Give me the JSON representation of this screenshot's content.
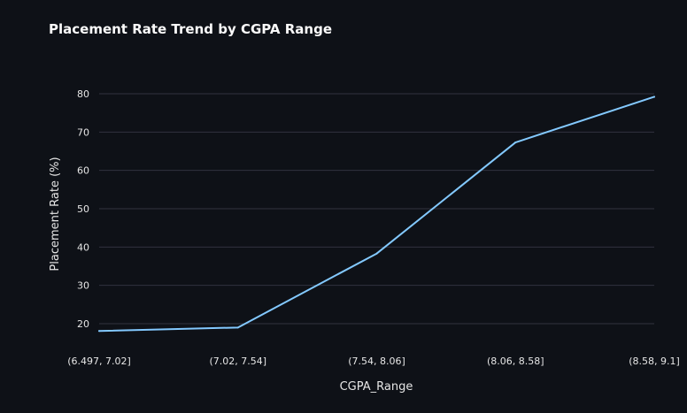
{
  "chart_data": {
    "type": "line",
    "title": "Placement Rate Trend by CGPA Range",
    "xlabel": "CGPA_Range",
    "ylabel": "Placement Rate (%)",
    "categories": [
      "(6.497, 7.02]",
      "(7.02, 7.54]",
      "(7.54, 8.06]",
      "(8.06, 8.58]",
      "(8.58, 9.1]"
    ],
    "series": [
      {
        "values": [
          18.1,
          19.0,
          38.3,
          67.3,
          79.2
        ]
      }
    ],
    "yticks": [
      20,
      30,
      40,
      50,
      60,
      70,
      80
    ],
    "ylim": [
      14.5,
      83
    ],
    "grid": true,
    "line_color": "#83c9ff",
    "background_color": "#0e1117",
    "grid_color": "#31333f",
    "text_color": "#e6e6e6"
  }
}
